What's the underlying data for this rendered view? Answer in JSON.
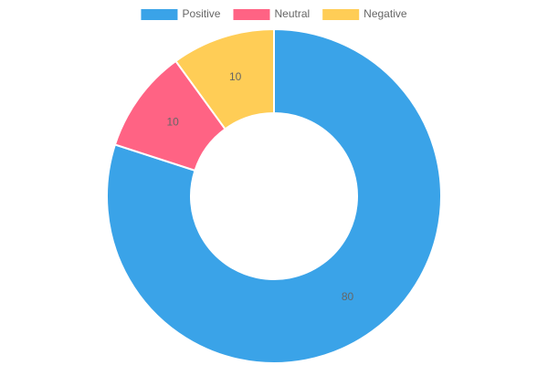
{
  "chart_data": {
    "type": "doughnut",
    "categories": [
      "Positive",
      "Neutral",
      "Negative"
    ],
    "values": [
      80,
      10,
      10
    ],
    "colors": [
      "#3aa3e8",
      "#ff6384",
      "#ffcd56"
    ],
    "legend": "top"
  }
}
